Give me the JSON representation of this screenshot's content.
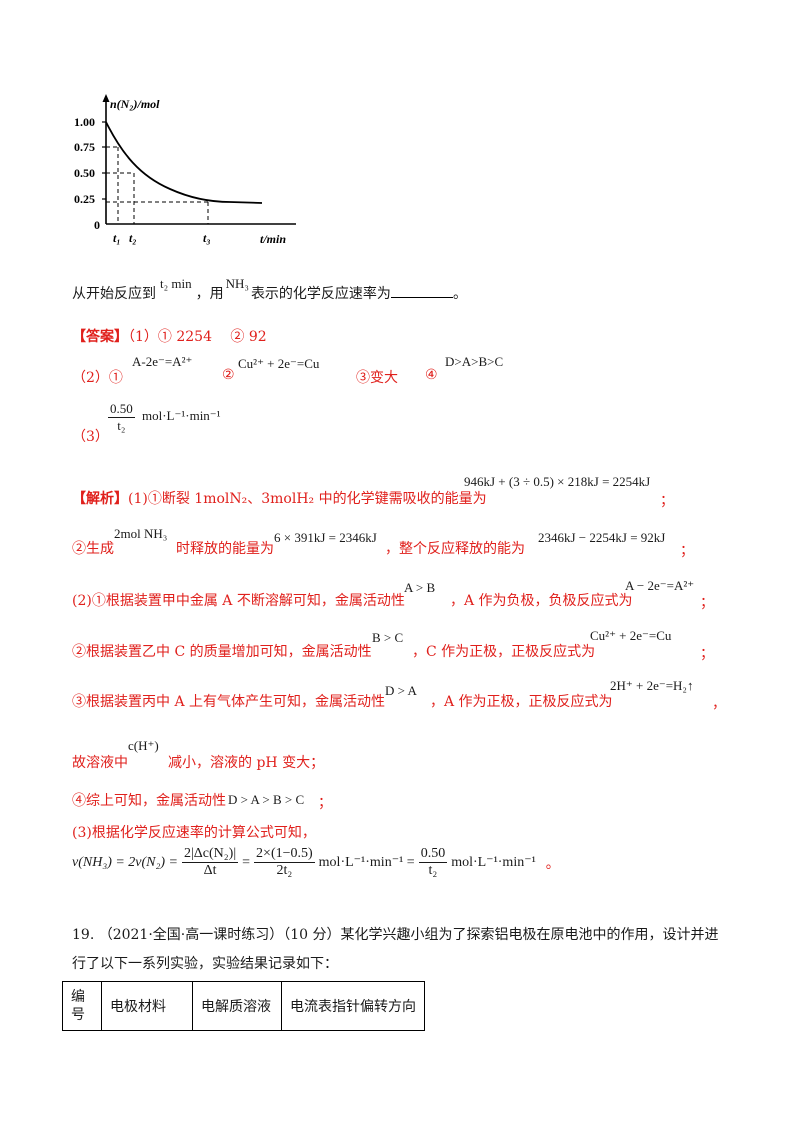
{
  "graph": {
    "ylabel": "n(N₂)/mol",
    "xlabel": "t/min",
    "yticks": [
      "1.00",
      "0.75",
      "0.50",
      "0.25",
      "0"
    ],
    "xticks": [
      "t₁",
      "t₂",
      "t₃"
    ]
  },
  "question": {
    "prefix": "从开始反应到",
    "t2": "t₂ min",
    "mid": "，用",
    "nh3": "NH₃",
    "suffix": "表示的化学反应速率为",
    "end": "。"
  },
  "answer": {
    "tag": "【答案】",
    "line1": "（1）① 2254　 ②  92",
    "l2_label": "（2）①",
    "l2_eq1": "A-2e⁻=A²⁺",
    "l2_c2": "②",
    "l2_eq2": "Cu²⁺ + 2e⁻=Cu",
    "l2_c3": "③变大",
    "l2_c4": "④",
    "l2_eq4": "D>A>B>C",
    "l3_label": "（3）",
    "l3_num": "0.50",
    "l3_den": "t₂",
    "l3_unit": "mol·L⁻¹·min⁻¹"
  },
  "analysis": {
    "tag": "【解析】",
    "p1": "(1)①断裂 1molN₂、3molH₂ 中的化学键需吸收的能量为",
    "p1_eq": "946kJ + (3 ÷ 0.5) × 218kJ = 2254kJ",
    "p1_end": "；",
    "p2a": "②生成",
    "p2_eq1": "2mol NH₃",
    "p2b": "时释放的能量为",
    "p2_eq2": "6 × 391kJ = 2346kJ",
    "p2c": "，整个反应释放的能为",
    "p2_eq3": "2346kJ − 2254kJ = 92kJ",
    "p2_end": "；",
    "p3a": "(2)①根据装置甲中金属 A 不断溶解可知，金属活动性",
    "p3_eq1": "A > B",
    "p3b": "，A 作为负极，负极反应式为",
    "p3_eq2": "A − 2e⁻=A²⁺",
    "p3_end": "；",
    "p4a": "②根据装置乙中 C 的质量增加可知，金属活动性",
    "p4_eq1": "B > C",
    "p4b": "，C 作为正极，正极反应式为",
    "p4_eq2": "Cu²⁺ + 2e⁻=Cu",
    "p4_end": "；",
    "p5a": "③根据装置丙中 A 上有气体产生可知，金属活动性",
    "p5_eq1": "D > A",
    "p5b": "，A 作为正极，正极反应式为",
    "p5_eq2": "2H⁺ + 2e⁻=H₂↑",
    "p5_end": "，",
    "p6a": "故溶液中",
    "p6_eq": "c(H⁺)",
    "p6b": "减小，溶液的 pH 变大；",
    "p7a": "④综上可知，金属活动性",
    "p7_eq": "D > A > B > C",
    "p7_end": "；",
    "p8": "(3)根据化学反应速率的计算公式可知，",
    "p9_left": "v(NH₃) = 2v(N₂) =",
    "p9_f1_num": "2|Δc(N₂)|",
    "p9_f1_den": "Δt",
    "p9_eq2": "=",
    "p9_f2_num": "2×(1−0.5)",
    "p9_f2_den": "2t₂",
    "p9_unit1": "mol·L⁻¹·min⁻¹ =",
    "p9_f3_num": "0.50",
    "p9_f3_den": "t₂",
    "p9_unit2": "mol·L⁻¹·min⁻¹",
    "p9_end": "。"
  },
  "q19": {
    "text1": "19. （2021·全国·高一课时练习）（10 分）某化学兴趣小组为了探索铝电极在原电池中的作用，设计并进",
    "text2": "行了以下一系列实验，实验结果记录如下："
  },
  "table": {
    "headers": [
      "编号",
      "电极材料",
      "电解质溶液",
      "电流表指针偏转方向"
    ]
  }
}
